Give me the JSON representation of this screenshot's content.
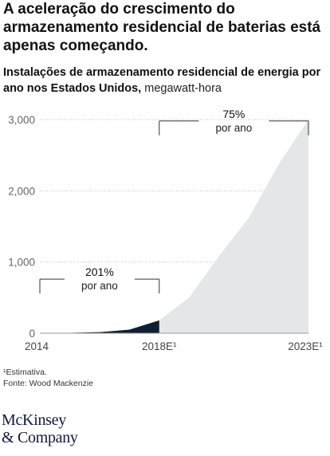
{
  "title": "A aceleração do crescimento do armazenamento residencial de baterias está apenas começando.",
  "subtitle": {
    "main": "Instalações de armazenamento residencial de energia por ano nos Estados Unidos,",
    "unit": " megawatt-hora"
  },
  "footnote": "¹Estimativa.",
  "source": "Fonte: Wood Mackenzie",
  "logo": {
    "line1": "McKinsey",
    "line2": "& Company"
  },
  "colors": {
    "historical": "#0f1f33",
    "forecast": "#e4e6e8",
    "grid": "#bfbfbf",
    "text": "#222222"
  },
  "chart_data": {
    "type": "area",
    "x": [
      2014,
      2015,
      2016,
      2017,
      2018,
      2019,
      2020,
      2021,
      2022,
      2023
    ],
    "series": [
      {
        "values": [
          0,
          5,
          15,
          50,
          180,
          500,
          1080,
          1620,
          2370,
          3000
        ]
      }
    ],
    "historical_range": [
      2014,
      2018
    ],
    "forecast_range": [
      2018,
      2023
    ],
    "ylim": [
      0,
      3000
    ],
    "yticks": [
      0,
      1000,
      2000,
      3000
    ],
    "ytick_labels": [
      "0",
      "1,000",
      "2,000",
      "3,000"
    ],
    "xtick_labels": [
      {
        "x": 2014,
        "label": "2014"
      },
      {
        "x": 2018,
        "label": "2018E¹"
      },
      {
        "x": 2023,
        "label": "2023E¹"
      }
    ],
    "annotations": [
      {
        "range": [
          2014,
          2018
        ],
        "value": "201%",
        "label": "por ano",
        "y": 760
      },
      {
        "range": [
          2018,
          2023
        ],
        "value": "75%",
        "label": "por ano",
        "y": 2980
      }
    ],
    "grid": true
  }
}
